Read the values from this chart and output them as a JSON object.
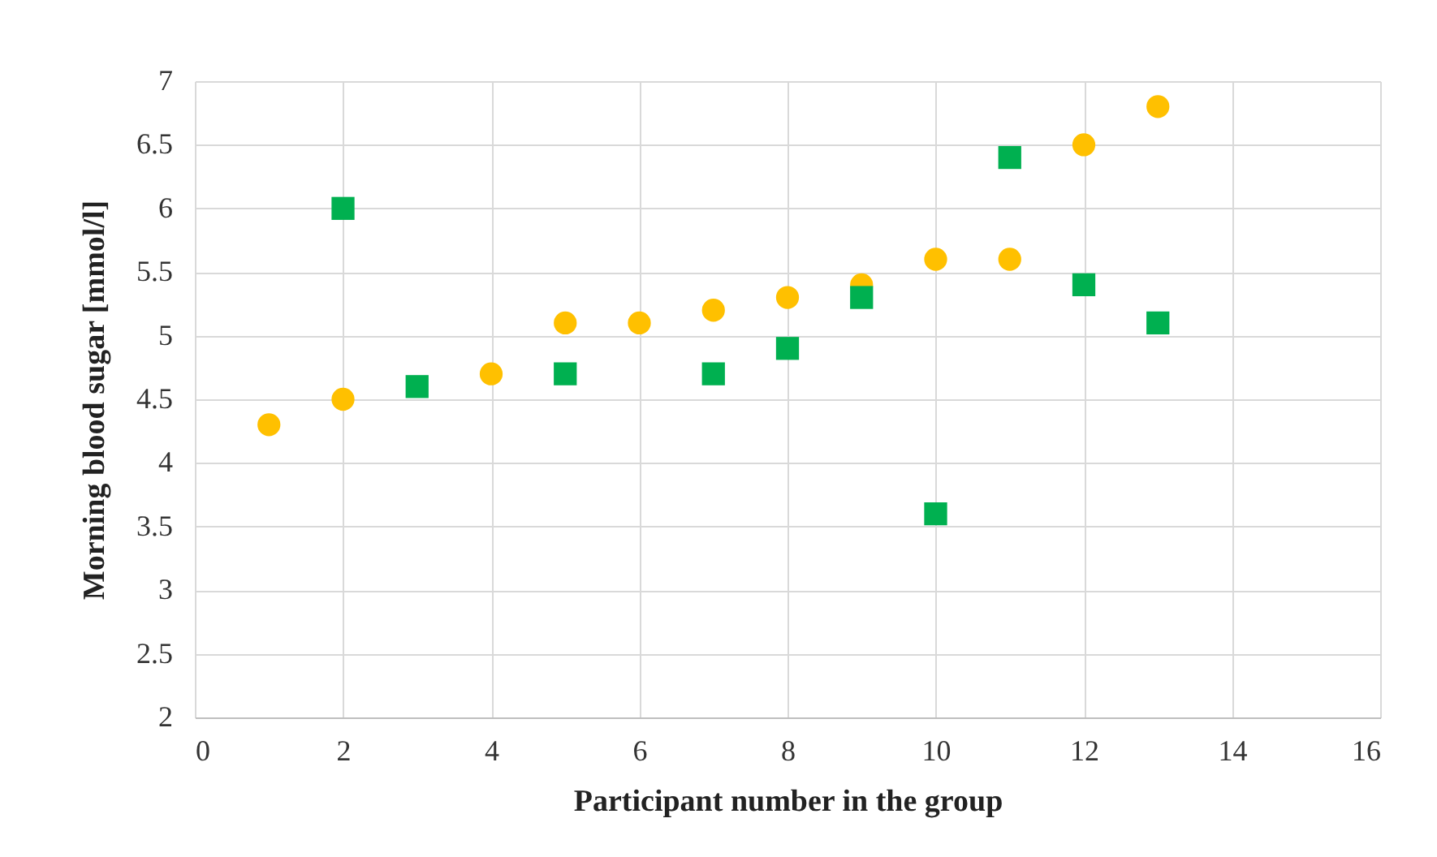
{
  "chart_data": {
    "type": "scatter",
    "xlabel": "Participant number in the group",
    "ylabel": "Morning blood sugar [mmol/l]",
    "xlim": [
      0,
      16
    ],
    "xticks": [
      0,
      2,
      4,
      6,
      8,
      10,
      12,
      14,
      16
    ],
    "ylim": [
      2,
      7
    ],
    "yticks": [
      2,
      2.5,
      3,
      3.5,
      4,
      4.5,
      5,
      5.5,
      6,
      6.5,
      7
    ],
    "grid": true,
    "series": [
      {
        "color": "#ffc000",
        "marker": "circle",
        "x": [
          1,
          2,
          4,
          5,
          6,
          7,
          8,
          9,
          10,
          11,
          12,
          13
        ],
        "values": [
          4.3,
          4.5,
          4.7,
          5.1,
          5.1,
          5.2,
          5.3,
          5.4,
          5.6,
          5.6,
          6.5,
          6.8
        ]
      },
      {
        "color": "#00b050",
        "marker": "square",
        "x": [
          2,
          3,
          5,
          7,
          8,
          9,
          10,
          11,
          12,
          13
        ],
        "values": [
          6.0,
          4.6,
          4.7,
          4.7,
          4.9,
          5.3,
          3.6,
          6.4,
          5.4,
          5.1
        ]
      }
    ]
  }
}
